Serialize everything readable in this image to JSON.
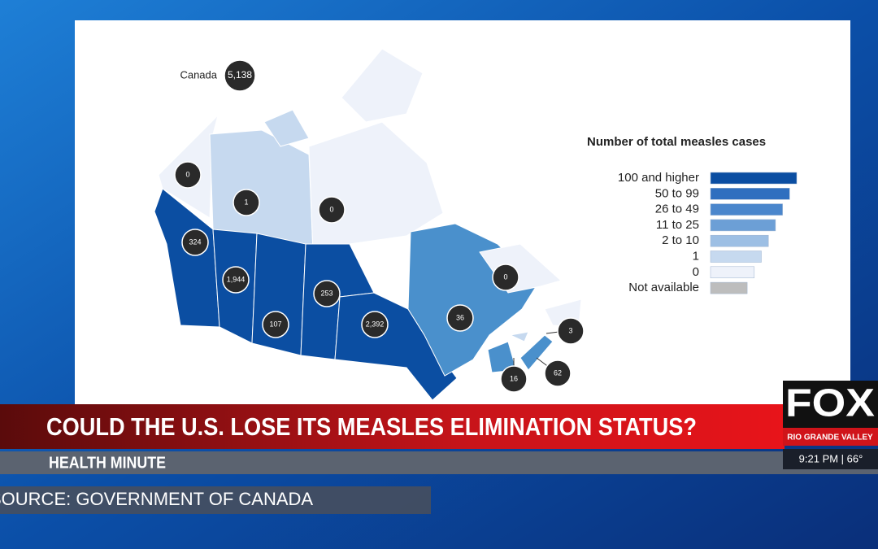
{
  "map": {
    "total_label": "Canada",
    "total_value": "5,138",
    "regions": [
      {
        "value": "0"
      },
      {
        "value": "1"
      },
      {
        "value": "0"
      },
      {
        "value": "324"
      },
      {
        "value": "1,944"
      },
      {
        "value": "107"
      },
      {
        "value": "253"
      },
      {
        "value": "2,392"
      },
      {
        "value": "0"
      },
      {
        "value": "36"
      },
      {
        "value": "3"
      },
      {
        "value": "16"
      },
      {
        "value": "62"
      }
    ]
  },
  "legend": {
    "title": "Number of total measles cases",
    "items": [
      "100 and higher",
      "50 to 99",
      "26 to 49",
      "11 to 25",
      "2 to 10",
      "1",
      "0",
      "Not available"
    ]
  },
  "lower_third": {
    "headline": "COULD THE U.S. LOSE ITS MEASLES ELIMINATION STATUS?",
    "segment": "HEALTH MINUTE",
    "source": "SOURCE: GOVERNMENT OF CANADA"
  },
  "station": {
    "logo": "FOX",
    "market": "RIO GRANDE VALLEY",
    "time_temp": "9:21 PM | 66°"
  }
}
